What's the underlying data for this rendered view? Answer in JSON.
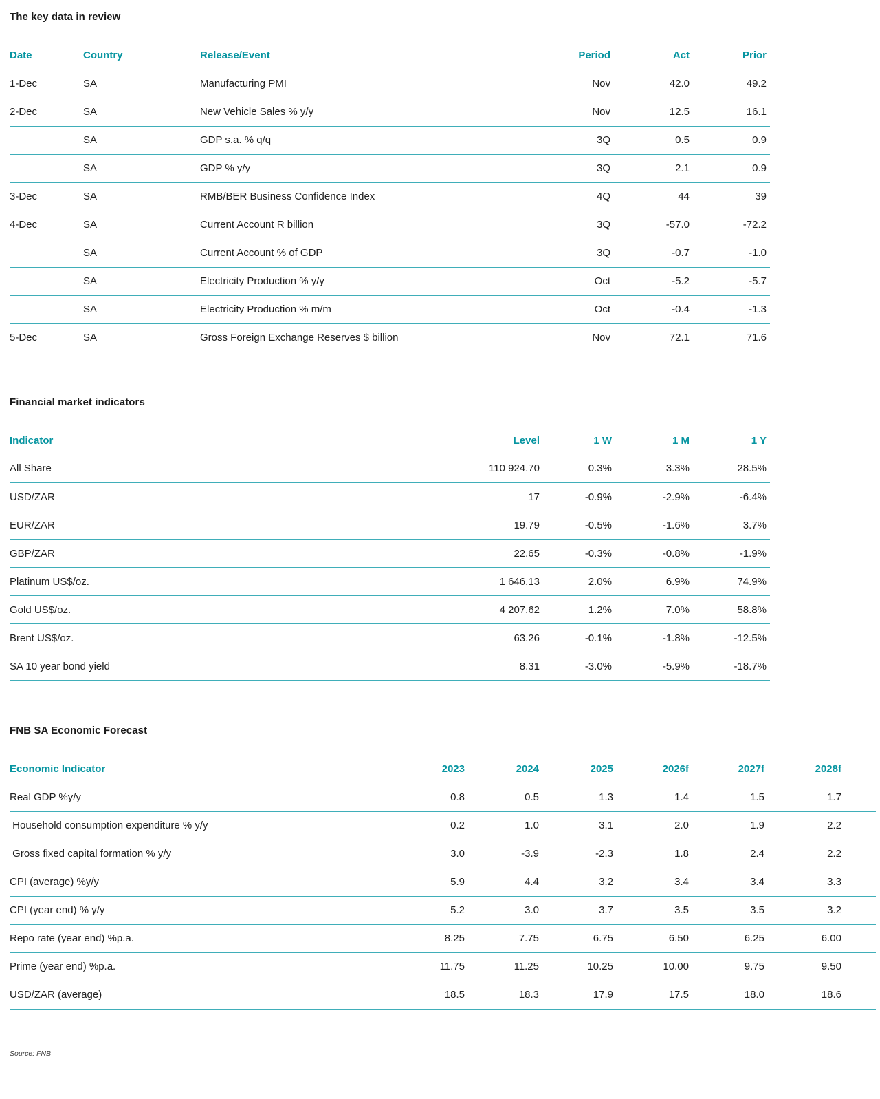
{
  "page": {
    "source_note": "Source: FNB",
    "accent_color": "#0795A1",
    "rule_color": "#3FAEB9",
    "text_color": "#212121"
  },
  "key_data": {
    "title": "The key data in review",
    "columns": [
      "Date",
      "Country",
      "Release/Event",
      "Period",
      "Act",
      "Prior"
    ],
    "rows": [
      [
        "1-Dec",
        "SA",
        "Manufacturing PMI",
        "Nov",
        "42.0",
        "49.2"
      ],
      [
        "2-Dec",
        "SA",
        "New Vehicle Sales % y/y",
        "Nov",
        "12.5",
        "16.1"
      ],
      [
        "",
        "SA",
        "GDP s.a. % q/q",
        "3Q",
        "0.5",
        "0.9"
      ],
      [
        "",
        "SA",
        "GDP % y/y",
        "3Q",
        "2.1",
        "0.9"
      ],
      [
        "3-Dec",
        "SA",
        "RMB/BER Business Confidence Index",
        "4Q",
        "44",
        "39"
      ],
      [
        "4-Dec",
        "SA",
        "Current Account R billion",
        "3Q",
        "-57.0",
        "-72.2"
      ],
      [
        "",
        "SA",
        "Current Account % of GDP",
        "3Q",
        "-0.7",
        "-1.0"
      ],
      [
        "",
        "SA",
        "Electricity Production % y/y",
        "Oct",
        "-5.2",
        "-5.7"
      ],
      [
        "",
        "SA",
        "Electricity Production % m/m",
        "Oct",
        "-0.4",
        "-1.3"
      ],
      [
        "5-Dec",
        "SA",
        "Gross Foreign Exchange Reserves $ billion",
        "Nov",
        "72.1",
        "71.6"
      ]
    ]
  },
  "financial": {
    "title": "Financial market indicators",
    "columns": [
      "Indicator",
      "Level",
      "1 W",
      "1 M",
      "1 Y"
    ],
    "rows": [
      [
        "All Share",
        "110 924.70",
        "0.3%",
        "3.3%",
        "28.5%"
      ],
      [
        "USD/ZAR",
        "17",
        "-0.9%",
        "-2.9%",
        "-6.4%"
      ],
      [
        "EUR/ZAR",
        "19.79",
        "-0.5%",
        "-1.6%",
        "3.7%"
      ],
      [
        "GBP/ZAR",
        "22.65",
        "-0.3%",
        "-0.8%",
        "-1.9%"
      ],
      [
        "Platinum US$/oz.",
        "1 646.13",
        "2.0%",
        "6.9%",
        "74.9%"
      ],
      [
        "Gold US$/oz.",
        "4 207.62",
        "1.2%",
        "7.0%",
        "58.8%"
      ],
      [
        "Brent US$/oz.",
        "63.26",
        "-0.1%",
        "-1.8%",
        "-12.5%"
      ],
      [
        "SA 10 year bond yield",
        "8.31",
        "-3.0%",
        "-5.9%",
        "-18.7%"
      ]
    ]
  },
  "forecast": {
    "title": "FNB SA Economic Forecast",
    "columns": [
      "Economic Indicator",
      "2023",
      "2024",
      "2025",
      "2026f",
      "2027f",
      "2028f"
    ],
    "rows": [
      [
        "Real GDP %y/y",
        "0.8",
        "0.5",
        "1.3",
        "1.4",
        "1.5",
        "1.7"
      ],
      [
        " Household consumption expenditure % y/y",
        "0.2",
        "1.0",
        "3.1",
        "2.0",
        "1.9",
        "2.2"
      ],
      [
        " Gross fixed capital formation % y/y",
        "3.0",
        "-3.9",
        "-2.3",
        "1.8",
        "2.4",
        "2.2"
      ],
      [
        "CPI (average) %y/y",
        "5.9",
        "4.4",
        "3.2",
        "3.4",
        "3.4",
        "3.3"
      ],
      [
        "CPI (year end) % y/y",
        "5.2",
        "3.0",
        "3.7",
        "3.5",
        "3.5",
        "3.2"
      ],
      [
        "Repo rate (year end) %p.a.",
        "8.25",
        "7.75",
        "6.75",
        "6.50",
        "6.25",
        "6.00"
      ],
      [
        "Prime (year end) %p.a.",
        "11.75",
        "11.25",
        "10.25",
        "10.00",
        "9.75",
        "9.50"
      ],
      [
        "USD/ZAR (average)",
        "18.5",
        "18.3",
        "17.9",
        "17.5",
        "18.0",
        "18.6"
      ]
    ]
  }
}
